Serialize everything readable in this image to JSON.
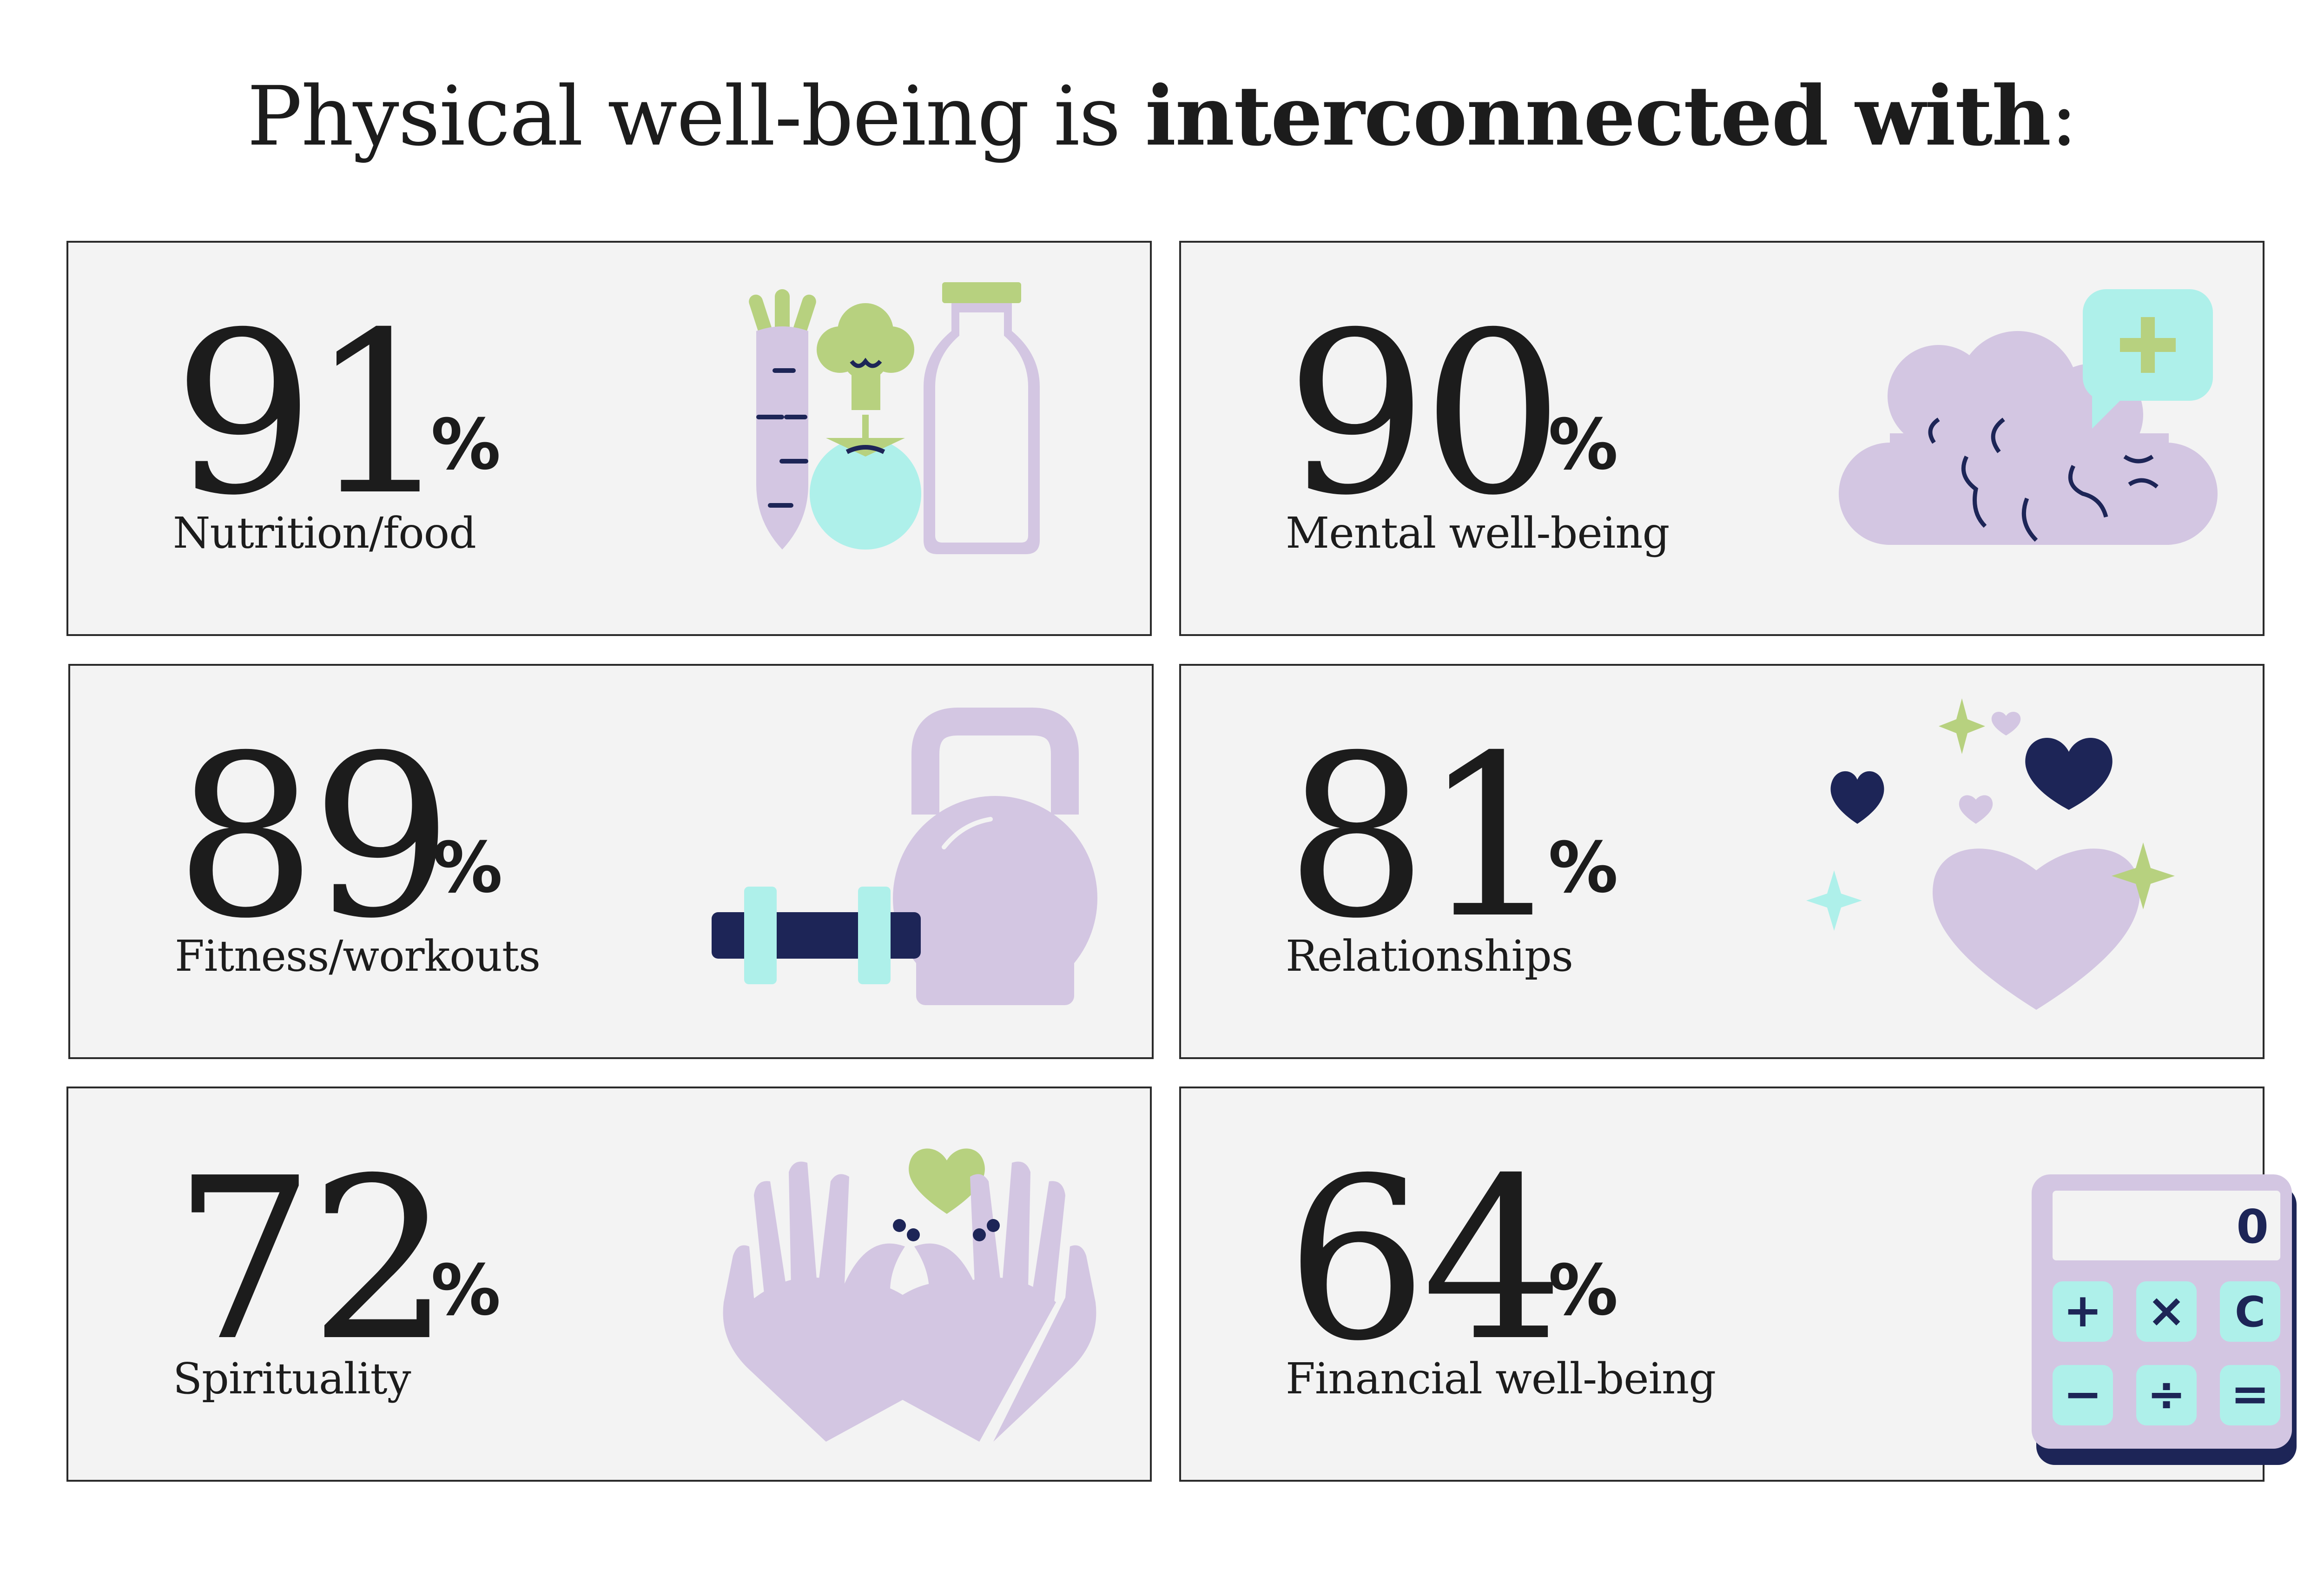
{
  "title": {
    "prefix": "Physical well-being is ",
    "bold": "interconnected with",
    "suffix": ":"
  },
  "colors": {
    "lavender": "#d3c6e2",
    "navy": "#1d2557",
    "mint": "#aef0ea",
    "green": "#b7d17f",
    "card_bg": "#f3f3f3",
    "text": "#1c1c1c"
  },
  "cards": [
    {
      "value": "91",
      "unit": "%",
      "label": "Nutrition/food",
      "icon": "vegetables-milk-icon"
    },
    {
      "value": "90",
      "unit": "%",
      "label": "Mental well-being",
      "icon": "brain-plus-icon"
    },
    {
      "value": "89",
      "unit": "%",
      "label": "Fitness/workouts",
      "icon": "kettlebell-dumbbell-icon"
    },
    {
      "value": "81",
      "unit": "%",
      "label": "Relationships",
      "icon": "hearts-icon"
    },
    {
      "value": "72",
      "unit": "%",
      "label": "Spirituality",
      "icon": "hands-heart-icon"
    },
    {
      "value": "64",
      "unit": "%",
      "label": "Financial well-being",
      "icon": "calculator-icon"
    }
  ],
  "calculator": {
    "display": "0",
    "keys": [
      "+",
      "×",
      "C",
      "−",
      "÷",
      "="
    ]
  }
}
